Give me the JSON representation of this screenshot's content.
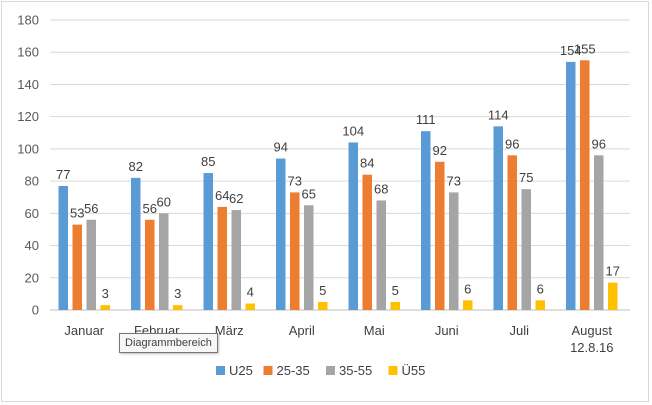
{
  "chart_data": {
    "type": "bar",
    "categories": [
      "Januar",
      "Februar",
      "März",
      "April",
      "Mai",
      "Juni",
      "Juli",
      "August\n12.8.16"
    ],
    "series": [
      {
        "name": "U25",
        "color": "#5b9bd5",
        "values": [
          77,
          82,
          85,
          94,
          104,
          111,
          114,
          154
        ]
      },
      {
        "name": "25-35",
        "color": "#ed7d31",
        "values": [
          53,
          56,
          64,
          73,
          84,
          92,
          96,
          155
        ]
      },
      {
        "name": "35-55",
        "color": "#a5a5a5",
        "values": [
          56,
          60,
          62,
          65,
          68,
          73,
          75,
          96
        ]
      },
      {
        "name": "Ü55",
        "color": "#ffc000",
        "values": [
          3,
          3,
          4,
          5,
          5,
          6,
          6,
          17
        ]
      }
    ],
    "ylim": [
      0,
      180
    ],
    "yticks": [
      0,
      20,
      40,
      60,
      80,
      100,
      120,
      140,
      160,
      180
    ],
    "grid": true,
    "legend_position": "bottom"
  },
  "tooltip": {
    "text": "Diagrammbereich"
  }
}
